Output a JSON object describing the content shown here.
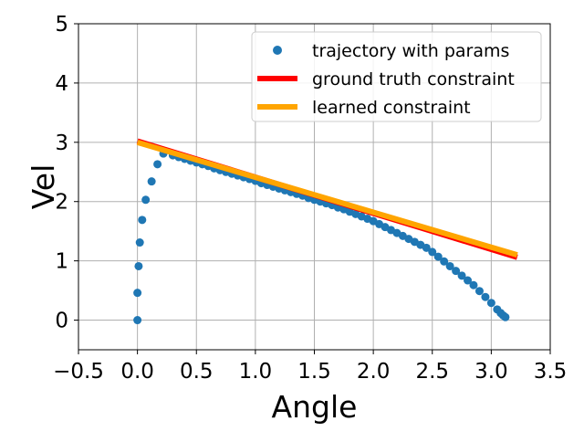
{
  "chart_data": {
    "type": "scatter",
    "xlabel": "Angle",
    "ylabel": "Vel",
    "xlim": [
      -0.5,
      3.5
    ],
    "ylim": [
      -0.5,
      5
    ],
    "xticks": [
      -0.5,
      0.0,
      0.5,
      1.0,
      1.5,
      2.0,
      2.5,
      3.0,
      3.5
    ],
    "xtick_labels": [
      "−0.5",
      "0.0",
      "0.5",
      "1.0",
      "1.5",
      "2.0",
      "2.5",
      "3.0",
      "3.5"
    ],
    "yticks": [
      0,
      1,
      2,
      3,
      4,
      5
    ],
    "ytick_labels": [
      "0",
      "1",
      "2",
      "3",
      "4",
      "5"
    ],
    "grid": true,
    "legend_position": "upper right",
    "series": [
      {
        "name": "trajectory with params",
        "kind": "scatter",
        "color": "#1f77b4",
        "x": [
          0.0,
          0.0,
          0.01,
          0.02,
          0.04,
          0.07,
          0.12,
          0.17,
          0.22,
          0.3,
          0.35,
          0.4,
          0.45,
          0.5,
          0.55,
          0.6,
          0.65,
          0.7,
          0.75,
          0.8,
          0.85,
          0.9,
          0.95,
          1.0,
          1.05,
          1.1,
          1.15,
          1.2,
          1.25,
          1.3,
          1.35,
          1.4,
          1.45,
          1.5,
          1.55,
          1.6,
          1.65,
          1.7,
          1.75,
          1.8,
          1.85,
          1.9,
          1.95,
          2.0,
          2.05,
          2.1,
          2.15,
          2.2,
          2.25,
          2.3,
          2.35,
          2.4,
          2.45,
          2.5,
          2.55,
          2.6,
          2.65,
          2.7,
          2.75,
          2.8,
          2.85,
          2.9,
          2.95,
          3.0,
          3.05,
          3.08,
          3.1,
          3.12
        ],
        "y": [
          0.0,
          0.46,
          0.91,
          1.31,
          1.69,
          2.03,
          2.34,
          2.63,
          2.81,
          2.78,
          2.75,
          2.72,
          2.69,
          2.66,
          2.63,
          2.6,
          2.56,
          2.53,
          2.5,
          2.47,
          2.44,
          2.41,
          2.38,
          2.35,
          2.31,
          2.28,
          2.25,
          2.22,
          2.19,
          2.16,
          2.13,
          2.1,
          2.06,
          2.03,
          2.0,
          1.97,
          1.94,
          1.9,
          1.87,
          1.83,
          1.79,
          1.75,
          1.71,
          1.67,
          1.62,
          1.57,
          1.52,
          1.47,
          1.42,
          1.37,
          1.32,
          1.27,
          1.22,
          1.15,
          1.07,
          0.99,
          0.91,
          0.83,
          0.75,
          0.67,
          0.59,
          0.49,
          0.39,
          0.29,
          0.18,
          0.12,
          0.08,
          0.05
        ]
      },
      {
        "name": "ground truth constraint",
        "kind": "line",
        "color": "#ff0000",
        "x": [
          0.0,
          3.22
        ],
        "y": [
          3.02,
          1.06
        ]
      },
      {
        "name": "learned constraint",
        "kind": "line",
        "color": "#ffa500",
        "x": [
          0.0,
          3.22
        ],
        "y": [
          3.0,
          1.1
        ]
      }
    ]
  }
}
